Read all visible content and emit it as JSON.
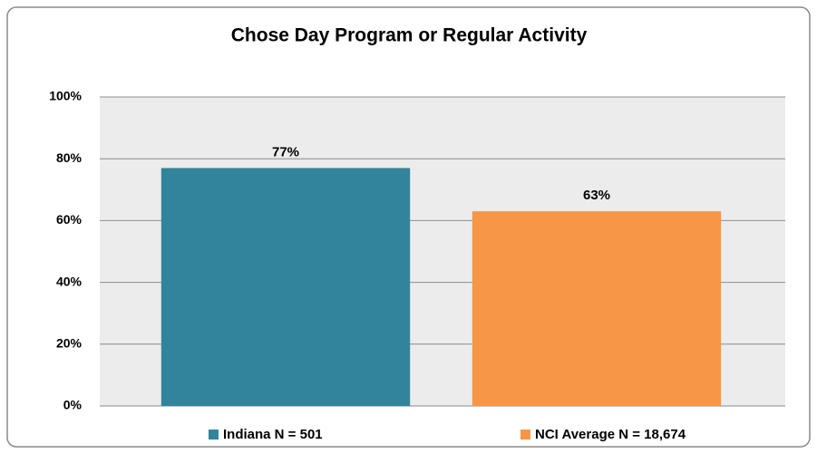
{
  "chart_data": {
    "type": "bar",
    "title": "Chose Day Program or Regular Activity",
    "categories": [
      "Indiana N = 501",
      "NCI Average N = 18,674"
    ],
    "values": [
      77,
      63
    ],
    "value_labels": [
      "77%",
      "63%"
    ],
    "colors": [
      "#31849b",
      "#f79646"
    ],
    "ylim": [
      0,
      100
    ],
    "yticks": [
      {
        "value": 0,
        "label": "0%"
      },
      {
        "value": 20,
        "label": "20%"
      },
      {
        "value": 40,
        "label": "40%"
      },
      {
        "value": 60,
        "label": "60%"
      },
      {
        "value": 80,
        "label": "80%"
      },
      {
        "value": 100,
        "label": "100%"
      }
    ],
    "grid": true,
    "legend": "bottom"
  }
}
